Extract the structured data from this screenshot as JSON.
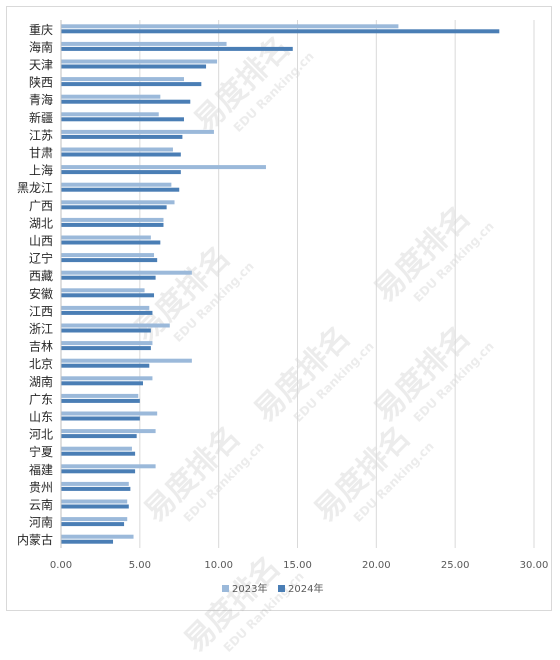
{
  "chart_data": {
    "type": "bar",
    "orientation": "horizontal",
    "categories": [
      "重庆",
      "海南",
      "天津",
      "陕西",
      "青海",
      "新疆",
      "江苏",
      "甘肃",
      "上海",
      "黑龙江",
      "广西",
      "湖北",
      "山西",
      "辽宁",
      "西藏",
      "安徽",
      "江西",
      "浙江",
      "吉林",
      "北京",
      "湖南",
      "广东",
      "山东",
      "河北",
      "宁夏",
      "福建",
      "贵州",
      "云南",
      "河南",
      "内蒙古"
    ],
    "series": [
      {
        "name": "2023年",
        "color": "#9bb9da",
        "values": [
          21.4,
          10.5,
          9.9,
          7.8,
          6.3,
          6.2,
          9.7,
          7.1,
          13.0,
          7.0,
          7.2,
          6.5,
          5.7,
          5.9,
          8.3,
          5.3,
          5.6,
          6.9,
          5.8,
          8.3,
          5.8,
          4.9,
          6.1,
          6.0,
          4.5,
          6.0,
          4.3,
          4.2,
          4.2,
          4.6
        ]
      },
      {
        "name": "2024年",
        "color": "#4a7eb5",
        "values": [
          27.8,
          14.7,
          9.2,
          8.9,
          8.2,
          7.8,
          7.7,
          7.6,
          7.6,
          7.5,
          6.7,
          6.5,
          6.3,
          6.1,
          6.0,
          5.9,
          5.8,
          5.7,
          5.7,
          5.6,
          5.2,
          5.0,
          5.0,
          4.8,
          4.7,
          4.7,
          4.4,
          4.3,
          4.0,
          3.3
        ]
      }
    ],
    "xlim": [
      0,
      30
    ],
    "xticks": [
      "0.00",
      "5.00",
      "10.00",
      "15.00",
      "20.00",
      "25.00",
      "30.00"
    ],
    "grid": true,
    "legend": "bottom"
  },
  "watermark": {
    "cn": "易度排名",
    "en": "EDU Ranking.cn"
  }
}
